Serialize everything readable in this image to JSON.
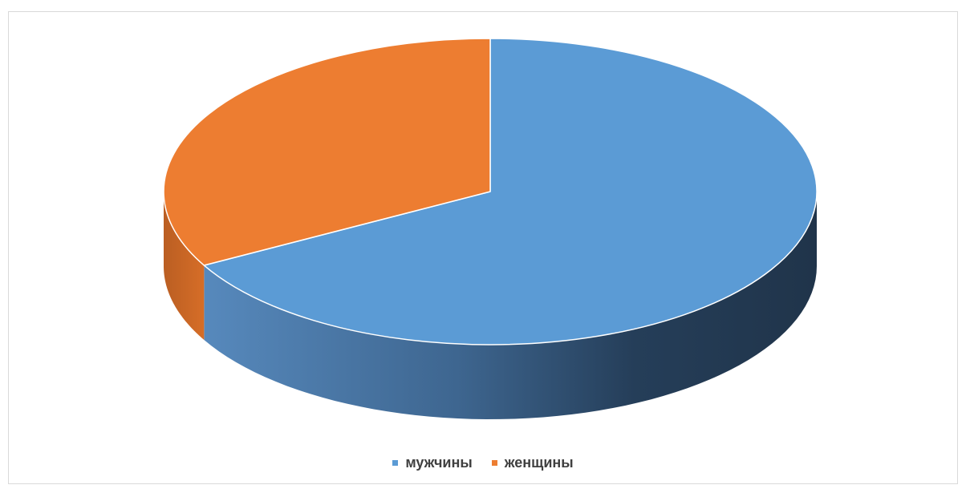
{
  "chart_data": {
    "type": "pie",
    "title": "",
    "categories": [
      "мужчины",
      "женщины"
    ],
    "values": [
      67,
      33
    ],
    "colors": [
      "#5B9BD5",
      "#ED7D31"
    ],
    "legend": "bottom",
    "style": "3d"
  }
}
